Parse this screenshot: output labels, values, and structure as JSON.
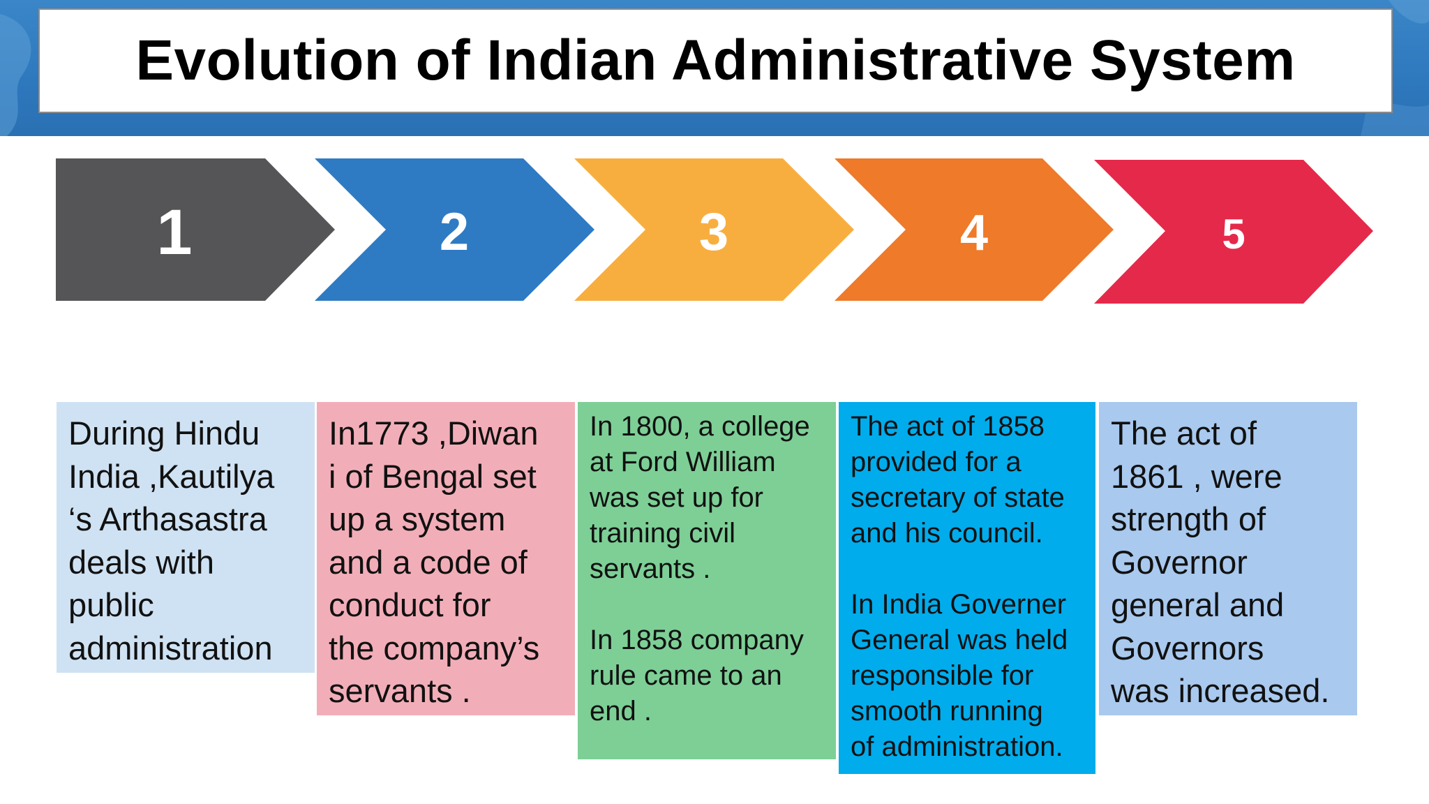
{
  "title": "Evolution of Indian Administrative System",
  "colors": {
    "banner": "#2e78bd",
    "step_1": "#555457",
    "step_2": "#2e7bc4",
    "step_3": "#f8ae3f",
    "step_4": "#ee7a2a",
    "step_5": "#e5294a",
    "card_1": "#cfe2f3",
    "card_2": "#f2aeb8",
    "card_3": "#7dcf96",
    "card_4": "#00acec",
    "card_5": "#a9c9ee"
  },
  "steps": [
    {
      "number": "1",
      "text": "During Hindu\nIndia ,Kautilya\n‘s Arthasastra\ndeals with\npublic\nadministration"
    },
    {
      "number": "2",
      "text": "In1773 ,Diwan\ni of Bengal set\nup a system\nand a code of\nconduct for\nthe company’s\nservants ."
    },
    {
      "number": "3",
      "text": "In 1800, a college\nat Ford William\nwas set up for\ntraining civil\nservants .\n\nIn 1858 company\nrule came to an\nend ."
    },
    {
      "number": "4",
      "text": "The act of 1858\nprovided for a\nsecretary of state\nand his council.\n\nIn India Governer\nGeneral was held\nresponsible for\nsmooth running\nof administration."
    },
    {
      "number": "5",
      "text": "The act of\n1861 , were\nstrength of\nGovernor\ngeneral and\nGovernors\nwas increased."
    }
  ]
}
